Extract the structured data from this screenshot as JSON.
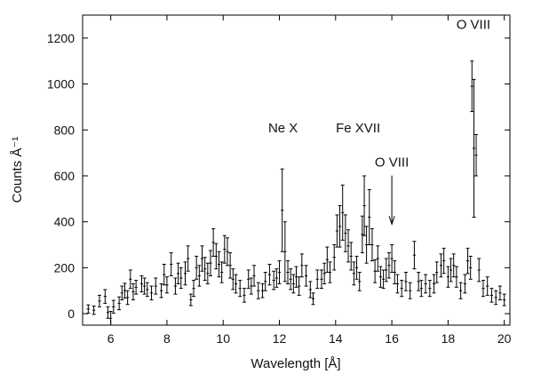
{
  "chart_data": {
    "type": "scatter",
    "xlabel": "Wavelength [Å]",
    "ylabel": "Counts Å⁻¹",
    "xlim": [
      5,
      20.2
    ],
    "ylim": [
      -50,
      1300
    ],
    "xticks": [
      6,
      8,
      10,
      12,
      14,
      16,
      18,
      20
    ],
    "yticks": [
      0,
      200,
      400,
      600,
      800,
      1000,
      1200
    ],
    "grid": false,
    "legend": "none",
    "color": "#000000",
    "annotations": [
      {
        "text": "O VIII",
        "x": 18.9,
        "y": 1240
      },
      {
        "text": "Ne X",
        "x": 12.13,
        "y": 790
      },
      {
        "text": "Fe XVII",
        "x": 14.8,
        "y": 790
      },
      {
        "text": "O VIII",
        "x": 16.0,
        "y": 640,
        "arrow_to": 390
      }
    ],
    "points": [
      [
        5.2,
        20,
        18
      ],
      [
        5.4,
        15,
        18
      ],
      [
        5.6,
        55,
        25
      ],
      [
        5.8,
        75,
        30
      ],
      [
        5.9,
        5,
        25
      ],
      [
        6.0,
        -20,
        30
      ],
      [
        6.1,
        30,
        28
      ],
      [
        6.3,
        45,
        28
      ],
      [
        6.4,
        90,
        30
      ],
      [
        6.5,
        100,
        32
      ],
      [
        6.6,
        70,
        30
      ],
      [
        6.7,
        150,
        40
      ],
      [
        6.8,
        95,
        35
      ],
      [
        6.9,
        115,
        30
      ],
      [
        7.1,
        130,
        35
      ],
      [
        7.2,
        120,
        35
      ],
      [
        7.3,
        105,
        30
      ],
      [
        7.45,
        90,
        30
      ],
      [
        7.6,
        120,
        35
      ],
      [
        7.8,
        100,
        30
      ],
      [
        7.9,
        170,
        45
      ],
      [
        8.0,
        125,
        35
      ],
      [
        8.15,
        215,
        50
      ],
      [
        8.3,
        120,
        35
      ],
      [
        8.4,
        175,
        45
      ],
      [
        8.5,
        155,
        45
      ],
      [
        8.65,
        175,
        50
      ],
      [
        8.75,
        240,
        55
      ],
      [
        8.85,
        60,
        25
      ],
      [
        8.95,
        110,
        35
      ],
      [
        9.05,
        200,
        50
      ],
      [
        9.15,
        165,
        45
      ],
      [
        9.25,
        240,
        55
      ],
      [
        9.35,
        195,
        50
      ],
      [
        9.45,
        175,
        45
      ],
      [
        9.55,
        220,
        55
      ],
      [
        9.65,
        310,
        60
      ],
      [
        9.75,
        250,
        55
      ],
      [
        9.85,
        215,
        55
      ],
      [
        9.95,
        180,
        45
      ],
      [
        10.05,
        280,
        60
      ],
      [
        10.15,
        270,
        60
      ],
      [
        10.25,
        210,
        55
      ],
      [
        10.35,
        150,
        45
      ],
      [
        10.45,
        130,
        40
      ],
      [
        10.6,
        110,
        35
      ],
      [
        10.75,
        80,
        30
      ],
      [
        10.9,
        150,
        40
      ],
      [
        11.0,
        120,
        35
      ],
      [
        11.1,
        165,
        45
      ],
      [
        11.25,
        100,
        35
      ],
      [
        11.4,
        100,
        30
      ],
      [
        11.5,
        140,
        40
      ],
      [
        11.65,
        170,
        45
      ],
      [
        11.8,
        145,
        40
      ],
      [
        11.9,
        155,
        40
      ],
      [
        12.0,
        180,
        50
      ],
      [
        12.1,
        450,
        180
      ],
      [
        12.2,
        270,
        130
      ],
      [
        12.3,
        180,
        50
      ],
      [
        12.4,
        150,
        45
      ],
      [
        12.5,
        130,
        40
      ],
      [
        12.6,
        160,
        45
      ],
      [
        12.7,
        120,
        40
      ],
      [
        12.8,
        210,
        50
      ],
      [
        12.95,
        165,
        45
      ],
      [
        13.1,
        105,
        35
      ],
      [
        13.2,
        65,
        25
      ],
      [
        13.35,
        150,
        40
      ],
      [
        13.5,
        150,
        40
      ],
      [
        13.6,
        175,
        45
      ],
      [
        13.7,
        235,
        55
      ],
      [
        13.8,
        180,
        45
      ],
      [
        13.95,
        245,
        55
      ],
      [
        14.05,
        360,
        70
      ],
      [
        14.15,
        380,
        90
      ],
      [
        14.25,
        440,
        120
      ],
      [
        14.35,
        350,
        80
      ],
      [
        14.45,
        295,
        70
      ],
      [
        14.55,
        250,
        60
      ],
      [
        14.65,
        175,
        50
      ],
      [
        14.75,
        200,
        50
      ],
      [
        14.85,
        140,
        40
      ],
      [
        14.95,
        345,
        80
      ],
      [
        15.02,
        470,
        130
      ],
      [
        15.1,
        300,
        80
      ],
      [
        15.2,
        420,
        120
      ],
      [
        15.3,
        300,
        70
      ],
      [
        15.4,
        185,
        50
      ],
      [
        15.5,
        240,
        55
      ],
      [
        15.6,
        160,
        45
      ],
      [
        15.7,
        150,
        40
      ],
      [
        15.8,
        190,
        50
      ],
      [
        15.9,
        210,
        55
      ],
      [
        16.0,
        240,
        60
      ],
      [
        16.1,
        180,
        50
      ],
      [
        16.2,
        130,
        40
      ],
      [
        16.35,
        110,
        35
      ],
      [
        16.5,
        140,
        40
      ],
      [
        16.65,
        100,
        35
      ],
      [
        16.8,
        255,
        60
      ],
      [
        16.95,
        140,
        40
      ],
      [
        17.05,
        110,
        35
      ],
      [
        17.2,
        130,
        40
      ],
      [
        17.35,
        110,
        35
      ],
      [
        17.5,
        130,
        40
      ],
      [
        17.6,
        180,
        45
      ],
      [
        17.75,
        210,
        50
      ],
      [
        17.85,
        230,
        55
      ],
      [
        18.0,
        160,
        45
      ],
      [
        18.1,
        190,
        50
      ],
      [
        18.2,
        210,
        50
      ],
      [
        18.3,
        160,
        45
      ],
      [
        18.45,
        100,
        35
      ],
      [
        18.6,
        130,
        40
      ],
      [
        18.7,
        230,
        55
      ],
      [
        18.8,
        200,
        50
      ],
      [
        18.85,
        990,
        110
      ],
      [
        18.92,
        720,
        300
      ],
      [
        19.0,
        690,
        90
      ],
      [
        19.1,
        190,
        50
      ],
      [
        19.25,
        110,
        35
      ],
      [
        19.4,
        120,
        40
      ],
      [
        19.55,
        80,
        30
      ],
      [
        19.7,
        70,
        30
      ],
      [
        19.85,
        90,
        30
      ],
      [
        20.0,
        60,
        25
      ]
    ]
  }
}
